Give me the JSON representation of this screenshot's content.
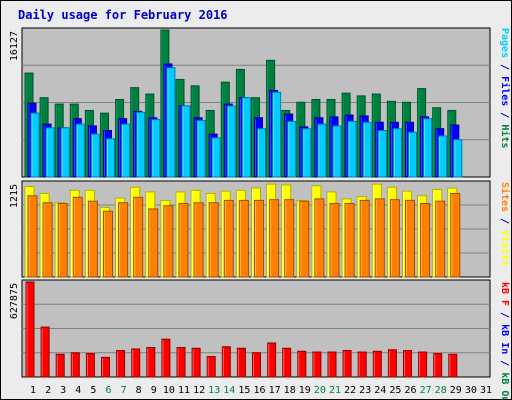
{
  "chart_data": {
    "type": "bar",
    "title": "Daily usage for February 2016",
    "categories": [
      "1",
      "2",
      "3",
      "4",
      "5",
      "6",
      "7",
      "8",
      "9",
      "10",
      "11",
      "12",
      "13",
      "14",
      "15",
      "16",
      "17",
      "18",
      "19",
      "20",
      "21",
      "22",
      "23",
      "24",
      "25",
      "26",
      "27",
      "28",
      "29",
      "30",
      "31"
    ],
    "weekend_days": [
      "6",
      "7",
      "13",
      "14",
      "20",
      "21",
      "27",
      "28"
    ],
    "panels": [
      {
        "id": "pages-files-hits",
        "ylabel_parts": [
          {
            "text": "Pages",
            "color": "#00ccff"
          },
          {
            "text": " / ",
            "color": "#0000cc"
          },
          {
            "text": "Files",
            "color": "#0000ff"
          },
          {
            "text": " / ",
            "color": "#0000cc"
          },
          {
            "text": "Hits",
            "color": "#008040"
          }
        ],
        "max_label": "16127",
        "ymax": 16127,
        "series": [
          {
            "name": "Hits",
            "color": "#008040",
            "values": [
              11400,
              8700,
              8000,
              8000,
              7300,
              7000,
              8500,
              9800,
              9100,
              16127,
              10700,
              10000,
              7300,
              10400,
              11800,
              8700,
              12800,
              7300,
              8200,
              8500,
              8500,
              9200,
              8900,
              9100,
              8300,
              8200,
              9700,
              7600,
              7300,
              null,
              null
            ]
          },
          {
            "name": "Files",
            "color": "#0000ff",
            "values": [
              8100,
              5800,
              5400,
              6400,
              5600,
              5100,
              6400,
              7200,
              6500,
              12400,
              7800,
              6500,
              4700,
              8000,
              8700,
              6500,
              9500,
              6900,
              5500,
              6500,
              6600,
              6800,
              6700,
              6000,
              6000,
              6000,
              6600,
              5300,
              5700,
              null,
              null
            ]
          },
          {
            "name": "Pages",
            "color": "#00ccff",
            "values": [
              7000,
              5400,
              5400,
              5800,
              4700,
              4200,
              5800,
              7100,
              6300,
              12000,
              7800,
              6200,
              4300,
              7800,
              8700,
              5300,
              9300,
              6100,
              5300,
              5800,
              5600,
              6100,
              6000,
              5100,
              5300,
              4900,
              6400,
              4500,
              4100,
              null,
              null
            ]
          }
        ]
      },
      {
        "id": "visits-sites",
        "ylabel_parts": [
          {
            "text": "Sites",
            "color": "#ff8000"
          },
          {
            "text": " / ",
            "color": "#0000cc"
          },
          {
            "text": "Visits",
            "color": "#ffff00"
          }
        ],
        "max_label": "1215",
        "ymax": 1215,
        "series": [
          {
            "name": "Visits",
            "color": "#ffff00",
            "values": [
              1170,
              1080,
              960,
              1120,
              1120,
              900,
              1020,
              1160,
              1100,
              990,
              1100,
              1120,
              1080,
              1110,
              1120,
              1150,
              1200,
              1190,
              990,
              1180,
              1100,
              1010,
              1040,
              1200,
              1160,
              1110,
              1050,
              1130,
              1150,
              null,
              null
            ]
          },
          {
            "name": "Sites",
            "color": "#ff8000",
            "values": [
              1050,
              960,
              950,
              1030,
              980,
              850,
              960,
              1030,
              880,
              920,
              950,
              960,
              960,
              990,
              990,
              990,
              1000,
              1000,
              980,
              1010,
              950,
              950,
              990,
              1010,
              1000,
              990,
              950,
              980,
              1080,
              null,
              null
            ]
          }
        ]
      },
      {
        "id": "kb-f-in-out",
        "ylabel_parts": [
          {
            "text": "kB F",
            "color": "#ff0000"
          },
          {
            "text": " / ",
            "color": "#0000cc"
          },
          {
            "text": "kB In",
            "color": "#0000ff"
          },
          {
            "text": " / ",
            "color": "#0000cc"
          },
          {
            "text": "kB Out",
            "color": "#008040"
          }
        ],
        "max_label": "627875",
        "ymax": 627875,
        "series": [
          {
            "name": "kB F",
            "color": "#ff0000",
            "values": [
              627875,
              330000,
              150000,
              160000,
              155000,
              130000,
              175000,
              185000,
              195000,
              250000,
              195000,
              190000,
              135000,
              200000,
              190000,
              160000,
              225000,
              190000,
              170000,
              165000,
              165000,
              175000,
              165000,
              170000,
              180000,
              175000,
              165000,
              155000,
              150000,
              null,
              null
            ]
          }
        ]
      }
    ],
    "grid": true,
    "legend": "right-vertical"
  }
}
